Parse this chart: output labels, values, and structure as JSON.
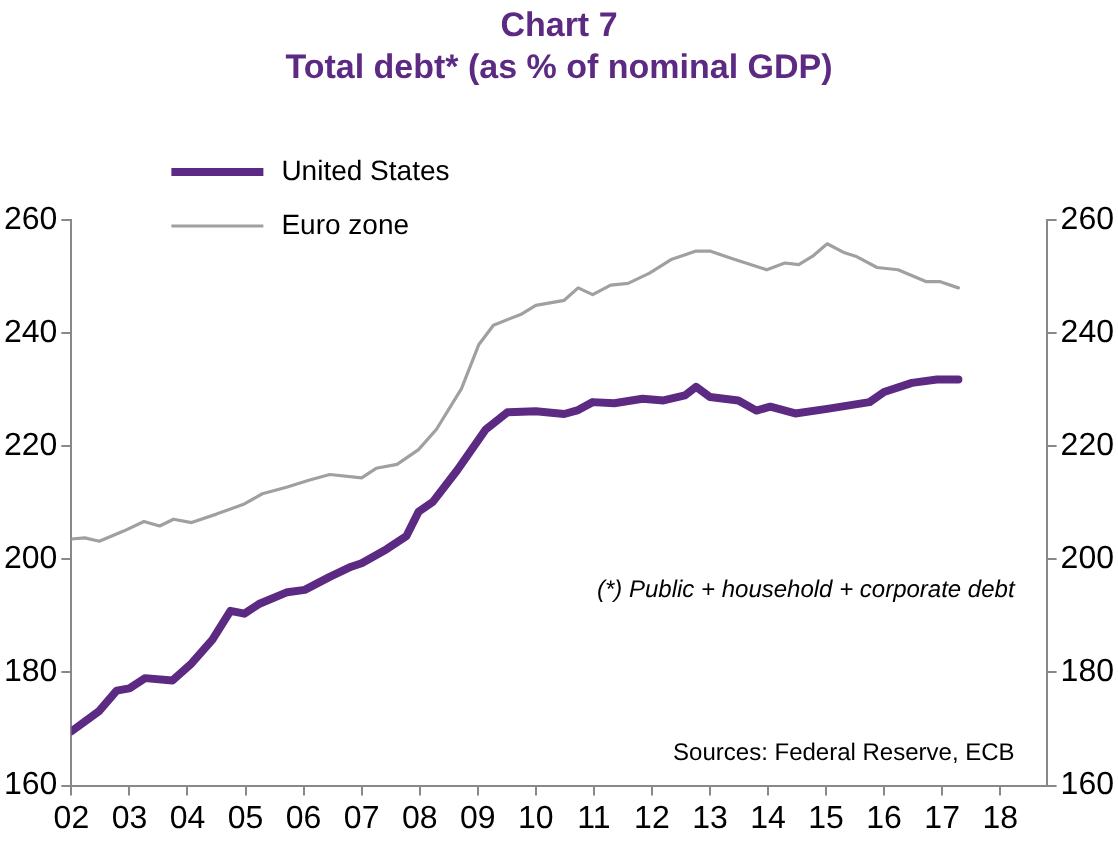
{
  "chart_data": {
    "type": "line",
    "title": "Chart 7",
    "subtitle": "Total debt* (as % of nominal GDP)",
    "series": [
      {
        "name": "United States",
        "color": "#5c2a82",
        "x": [
          2002.0,
          2002.48,
          2002.78,
          2003.0,
          2003.27,
          2003.74,
          2004.07,
          2004.43,
          2004.74,
          2004.98,
          2005.23,
          2005.72,
          2006.02,
          2006.45,
          2006.82,
          2007.0,
          2007.43,
          2007.77,
          2007.98,
          2008.23,
          2008.65,
          2009.14,
          2009.51,
          2010.0,
          2010.49,
          2010.73,
          2010.98,
          2011.35,
          2011.84,
          2012.2,
          2012.57,
          2012.76,
          2013.0,
          2013.49,
          2013.8,
          2014.04,
          2014.47,
          2015.02,
          2015.75,
          2016.0,
          2016.48,
          2016.91,
          2017.28
        ],
        "values": [
          169.6,
          173.2,
          176.8,
          177.2,
          179.0,
          178.6,
          181.6,
          185.8,
          190.9,
          190.4,
          192.1,
          194.2,
          194.6,
          196.9,
          198.7,
          199.3,
          201.8,
          204.1,
          208.4,
          210.2,
          215.8,
          223.0,
          226.0,
          226.2,
          225.7,
          226.4,
          227.8,
          227.6,
          228.4,
          228.1,
          229.0,
          230.5,
          228.7,
          228.1,
          226.3,
          227.0,
          225.8,
          226.6,
          227.8,
          229.6,
          231.2,
          231.8,
          231.8
        ]
      },
      {
        "name": "Euro zone",
        "color": "#a0a0a0",
        "x": [
          2002.0,
          2002.23,
          2002.48,
          2002.9,
          2003.25,
          2003.52,
          2003.76,
          2004.07,
          2004.5,
          2004.98,
          2005.29,
          2005.72,
          2006.09,
          2006.45,
          2007.0,
          2007.25,
          2007.61,
          2007.98,
          2008.29,
          2008.72,
          2009.02,
          2009.27,
          2009.76,
          2010.0,
          2010.49,
          2010.73,
          2010.98,
          2011.29,
          2011.59,
          2011.96,
          2012.33,
          2012.76,
          2013.0,
          2013.43,
          2013.98,
          2014.29,
          2014.53,
          2014.77,
          2015.02,
          2015.32,
          2015.51,
          2015.88,
          2016.24,
          2016.73,
          2016.97,
          2017.28
        ],
        "values": [
          203.6,
          203.8,
          203.2,
          205.0,
          206.7,
          205.9,
          207.1,
          206.5,
          208.0,
          209.8,
          211.6,
          212.8,
          214.0,
          215.0,
          214.4,
          216.1,
          216.8,
          219.4,
          223.0,
          230.2,
          238.0,
          241.4,
          243.4,
          244.9,
          245.8,
          248.0,
          246.8,
          248.5,
          248.8,
          250.6,
          253.0,
          254.5,
          254.5,
          253.0,
          251.2,
          252.4,
          252.1,
          253.6,
          255.8,
          254.2,
          253.6,
          251.6,
          251.2,
          249.1,
          249.1,
          248.0
        ]
      }
    ],
    "xlim": [
      2002,
      2018.8
    ],
    "xticks": [
      {
        "value": 2002,
        "label": "02"
      },
      {
        "value": 2003,
        "label": "03"
      },
      {
        "value": 2004,
        "label": "04"
      },
      {
        "value": 2005,
        "label": "05"
      },
      {
        "value": 2006,
        "label": "06"
      },
      {
        "value": 2007,
        "label": "07"
      },
      {
        "value": 2008,
        "label": "08"
      },
      {
        "value": 2009,
        "label": "09"
      },
      {
        "value": 2010,
        "label": "10"
      },
      {
        "value": 2011,
        "label": "11"
      },
      {
        "value": 2012,
        "label": "12"
      },
      {
        "value": 2013,
        "label": "13"
      },
      {
        "value": 2014,
        "label": "14"
      },
      {
        "value": 2015,
        "label": "15"
      },
      {
        "value": 2016,
        "label": "16"
      },
      {
        "value": 2017,
        "label": "17"
      },
      {
        "value": 2018,
        "label": "18"
      }
    ],
    "ylim": [
      160,
      260
    ],
    "yticks": [
      160,
      180,
      200,
      220,
      240,
      260
    ],
    "y2lim": [
      160,
      260
    ],
    "y2ticks": [
      160,
      180,
      200,
      220,
      240,
      260
    ],
    "annotations": [
      "(*) Public + household + corporate debt",
      "Sources: Federal Reserve, ECB"
    ],
    "legend": "top left",
    "grid": false,
    "marker": "none",
    "line_style": "solid"
  }
}
